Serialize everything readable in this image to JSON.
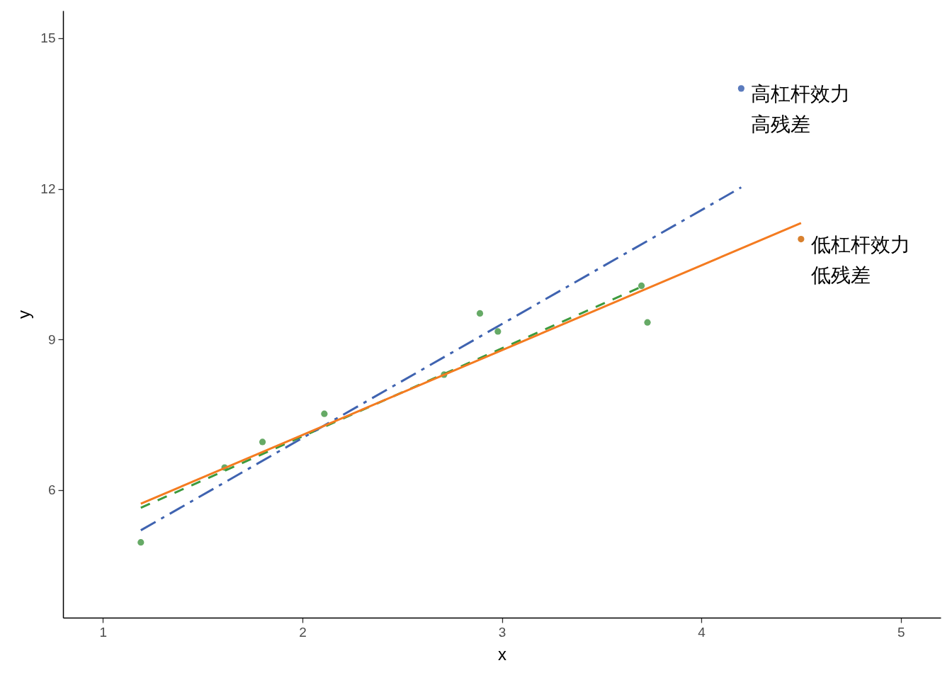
{
  "chart_data": {
    "type": "scatter",
    "xlabel": "x",
    "ylabel": "y",
    "xlim": [
      0.8,
      5.2
    ],
    "ylim": [
      3.46,
      15.55
    ],
    "xticks": [
      1,
      2,
      3,
      4,
      5
    ],
    "yticks": [
      6,
      9,
      12,
      15
    ],
    "series": [
      {
        "marker": "circle",
        "color": "#66aa66",
        "x": [
          1.19,
          1.61,
          1.8,
          2.11,
          2.71,
          2.89,
          2.98,
          3.7,
          3.73
        ],
        "values": [
          4.96,
          6.45,
          6.96,
          7.52,
          8.3,
          9.52,
          9.16,
          10.07,
          9.34
        ]
      },
      {
        "marker": "circle",
        "color": "#5b7bbd",
        "x": [
          4.2
        ],
        "values": [
          14.0
        ]
      },
      {
        "marker": "circle",
        "color": "#d8802e",
        "x": [
          4.5
        ],
        "values": [
          11.0
        ]
      },
      {
        "type": "line",
        "marker": "none",
        "color": "#3d9a3d",
        "line_style": "dashed",
        "x": [
          1.19,
          3.7
        ],
        "values": [
          5.65,
          10.05
        ]
      },
      {
        "type": "line",
        "marker": "none",
        "color": "#3f63b0",
        "line_style": "dashdot",
        "x": [
          1.19,
          4.2
        ],
        "values": [
          5.2,
          12.03
        ]
      },
      {
        "type": "line",
        "marker": "none",
        "color": "#f47b20",
        "line_style": "solid",
        "x": [
          1.19,
          4.5
        ],
        "values": [
          5.73,
          11.32
        ]
      }
    ],
    "annotations": [
      {
        "text": "高杠杆效力高残差",
        "x": 4.2,
        "y": 14.0
      },
      {
        "text": "低杠杆效力低残差",
        "x": 4.5,
        "y": 11.0
      }
    ]
  }
}
